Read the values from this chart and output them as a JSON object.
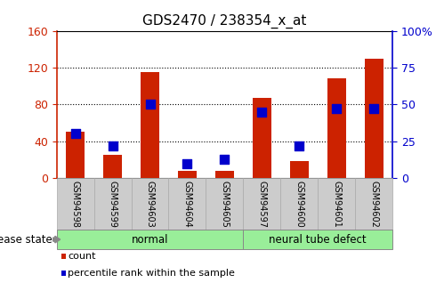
{
  "title": "GDS2470 / 238354_x_at",
  "categories": [
    "GSM94598",
    "GSM94599",
    "GSM94603",
    "GSM94604",
    "GSM94605",
    "GSM94597",
    "GSM94600",
    "GSM94601",
    "GSM94602"
  ],
  "count_values": [
    50,
    25,
    115,
    8,
    8,
    87,
    18,
    108,
    130
  ],
  "percentile_values": [
    30,
    22,
    50,
    10,
    13,
    45,
    22,
    47,
    47
  ],
  "bar_color": "#cc2200",
  "dot_color": "#0000cc",
  "left_ylim": [
    0,
    160
  ],
  "right_ylim": [
    0,
    100
  ],
  "left_yticks": [
    0,
    40,
    80,
    120,
    160
  ],
  "right_yticks": [
    0,
    25,
    50,
    75,
    100
  ],
  "right_yticklabels": [
    "0",
    "25",
    "50",
    "75",
    "100%"
  ],
  "normal_indices": [
    0,
    1,
    2,
    3,
    4
  ],
  "defect_indices": [
    5,
    6,
    7,
    8
  ],
  "normal_label": "normal",
  "defect_label": "neural tube defect",
  "disease_label": "disease state",
  "legend_count": "count",
  "legend_percentile": "percentile rank within the sample",
  "group_bg_color": "#99ee99",
  "tick_label_bg": "#cccccc",
  "tick_label_edge": "#aaaaaa",
  "bar_width": 0.5,
  "dot_size": 45,
  "title_fontsize": 11,
  "axis_fontsize": 9,
  "cat_fontsize": 7,
  "group_fontsize": 8.5,
  "legend_fontsize": 8
}
